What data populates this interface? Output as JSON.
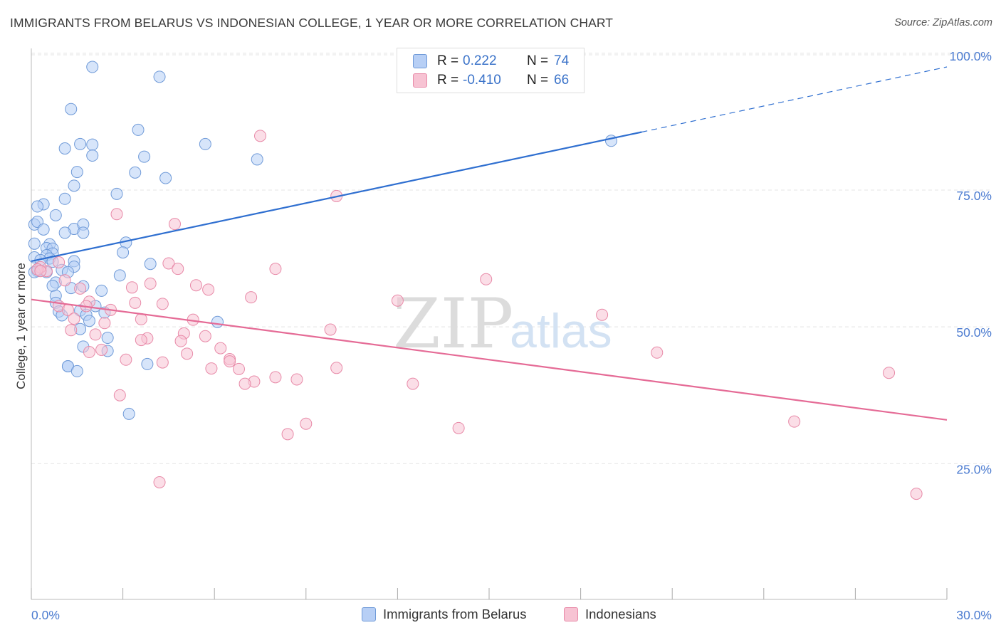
{
  "title": "IMMIGRANTS FROM BELARUS VS INDONESIAN COLLEGE, 1 YEAR OR MORE CORRELATION CHART",
  "source": "Source: ZipAtlas.com",
  "watermark": {
    "zip": "ZIP",
    "atlas": "atlas"
  },
  "legend": {
    "rows": [
      {
        "r_label": "R =",
        "r_value": "0.222",
        "n_label": "N =",
        "n_value": "74"
      },
      {
        "r_label": "R =",
        "r_value": "-0.410",
        "n_label": "N =",
        "n_value": "66"
      }
    ]
  },
  "bottom_legend": {
    "series1": "Immigrants from Belarus",
    "series2": "Indonesians"
  },
  "colors": {
    "blue_fill": "#b7cff5",
    "blue_stroke": "#6f9ad8",
    "blue_line": "#2f6fd0",
    "pink_fill": "#f7c3d3",
    "pink_stroke": "#e88aa8",
    "pink_line": "#e56b96",
    "axis_text": "#4b7bd0",
    "grid": "#e4e4e4"
  },
  "chart_data": {
    "type": "scatter",
    "title": "IMMIGRANTS FROM BELARUS VS INDONESIAN COLLEGE, 1 YEAR OR MORE CORRELATION CHART",
    "xlabel": "",
    "ylabel": "College, 1 year or more",
    "xlim": [
      0,
      30
    ],
    "ylim": [
      0,
      103
    ],
    "x_tick_labels": [
      "0.0%",
      "30.0%"
    ],
    "y_tick_labels": [
      "25.0%",
      "50.0%",
      "75.0%",
      "100.0%"
    ],
    "y_ticks": [
      25,
      50,
      75,
      100
    ],
    "series": [
      {
        "name": "Immigrants from Belarus",
        "R": 0.222,
        "N": 74,
        "trend": {
          "x0": 0,
          "y0": 62.0,
          "x1": 20.0,
          "y1": 85.6,
          "dash_x1": 30,
          "dash_y1": 97.5
        },
        "points": [
          [
            2.0,
            97.5
          ],
          [
            4.2,
            95.7
          ],
          [
            1.3,
            89.8
          ],
          [
            3.5,
            86.0
          ],
          [
            1.1,
            82.6
          ],
          [
            2.0,
            83.3
          ],
          [
            1.6,
            83.4
          ],
          [
            5.7,
            83.4
          ],
          [
            2.0,
            81.3
          ],
          [
            3.7,
            81.1
          ],
          [
            7.4,
            80.6
          ],
          [
            1.5,
            78.3
          ],
          [
            3.4,
            78.2
          ],
          [
            4.4,
            77.2
          ],
          [
            1.4,
            75.8
          ],
          [
            2.8,
            74.3
          ],
          [
            1.1,
            73.4
          ],
          [
            0.4,
            72.4
          ],
          [
            0.2,
            72.0
          ],
          [
            0.8,
            70.4
          ],
          [
            0.1,
            68.7
          ],
          [
            0.2,
            69.2
          ],
          [
            0.4,
            67.8
          ],
          [
            1.4,
            67.9
          ],
          [
            1.7,
            68.7
          ],
          [
            1.1,
            67.2
          ],
          [
            1.7,
            67.2
          ],
          [
            0.1,
            65.2
          ],
          [
            0.6,
            65.1
          ],
          [
            3.1,
            65.4
          ],
          [
            0.5,
            64.4
          ],
          [
            0.7,
            64.3
          ],
          [
            0.7,
            63.4
          ],
          [
            3.0,
            63.6
          ],
          [
            0.5,
            63.1
          ],
          [
            0.6,
            62.5
          ],
          [
            0.1,
            62.7
          ],
          [
            0.3,
            62.2
          ],
          [
            0.7,
            61.9
          ],
          [
            1.4,
            62.0
          ],
          [
            3.9,
            61.5
          ],
          [
            1.0,
            60.4
          ],
          [
            0.2,
            60.5
          ],
          [
            1.4,
            61.0
          ],
          [
            0.2,
            60.2
          ],
          [
            0.1,
            60.0
          ],
          [
            2.9,
            59.4
          ],
          [
            0.8,
            58.1
          ],
          [
            1.7,
            57.4
          ],
          [
            0.7,
            57.5
          ],
          [
            1.3,
            57.1
          ],
          [
            2.3,
            56.6
          ],
          [
            0.8,
            55.7
          ],
          [
            0.8,
            54.4
          ],
          [
            2.1,
            53.8
          ],
          [
            1.6,
            53.0
          ],
          [
            0.9,
            52.8
          ],
          [
            2.4,
            52.6
          ],
          [
            1.8,
            52.2
          ],
          [
            1.0,
            52.1
          ],
          [
            1.9,
            51.1
          ],
          [
            6.1,
            50.9
          ],
          [
            1.6,
            49.6
          ],
          [
            2.5,
            48.0
          ],
          [
            1.7,
            46.4
          ],
          [
            2.5,
            45.6
          ],
          [
            3.8,
            43.2
          ],
          [
            1.2,
            42.8
          ],
          [
            1.2,
            42.8
          ],
          [
            1.5,
            41.9
          ],
          [
            3.2,
            34.1
          ],
          [
            19.0,
            84.0
          ],
          [
            0.5,
            60.0
          ],
          [
            1.2,
            60.0
          ]
        ]
      },
      {
        "name": "Indonesians",
        "R": -0.41,
        "N": 66,
        "trend": {
          "x0": 0,
          "y0": 55.0,
          "x1": 30,
          "y1": 33.0
        },
        "points": [
          [
            7.5,
            84.9
          ],
          [
            10.0,
            73.9
          ],
          [
            2.8,
            70.6
          ],
          [
            4.7,
            68.8
          ],
          [
            0.9,
            61.8
          ],
          [
            0.5,
            60.2
          ],
          [
            0.3,
            60.9
          ],
          [
            0.2,
            60.5
          ],
          [
            4.5,
            61.6
          ],
          [
            4.8,
            60.6
          ],
          [
            8.0,
            60.6
          ],
          [
            14.9,
            58.7
          ],
          [
            3.9,
            57.9
          ],
          [
            5.4,
            57.6
          ],
          [
            1.1,
            58.5
          ],
          [
            3.3,
            57.2
          ],
          [
            5.8,
            56.8
          ],
          [
            1.6,
            57.0
          ],
          [
            7.2,
            55.4
          ],
          [
            12.0,
            54.8
          ],
          [
            3.4,
            54.4
          ],
          [
            4.3,
            54.2
          ],
          [
            1.9,
            54.6
          ],
          [
            1.8,
            53.8
          ],
          [
            2.6,
            53.1
          ],
          [
            0.9,
            53.8
          ],
          [
            1.2,
            53.1
          ],
          [
            18.7,
            52.2
          ],
          [
            3.6,
            51.4
          ],
          [
            1.4,
            51.5
          ],
          [
            5.3,
            51.3
          ],
          [
            2.4,
            50.7
          ],
          [
            1.3,
            49.4
          ],
          [
            9.8,
            49.5
          ],
          [
            5.0,
            48.8
          ],
          [
            5.7,
            48.3
          ],
          [
            2.1,
            48.6
          ],
          [
            3.8,
            47.9
          ],
          [
            3.6,
            47.6
          ],
          [
            4.9,
            47.4
          ],
          [
            6.2,
            46.1
          ],
          [
            2.3,
            45.8
          ],
          [
            1.9,
            45.4
          ],
          [
            20.5,
            45.3
          ],
          [
            5.1,
            45.1
          ],
          [
            3.1,
            44.0
          ],
          [
            4.3,
            43.5
          ],
          [
            6.5,
            44.1
          ],
          [
            6.5,
            43.7
          ],
          [
            10.0,
            42.5
          ],
          [
            6.8,
            42.3
          ],
          [
            5.9,
            42.4
          ],
          [
            28.1,
            41.6
          ],
          [
            8.0,
            40.8
          ],
          [
            8.7,
            40.4
          ],
          [
            7.3,
            40.0
          ],
          [
            12.5,
            39.6
          ],
          [
            7.0,
            39.6
          ],
          [
            2.9,
            37.5
          ],
          [
            9.0,
            32.3
          ],
          [
            25.0,
            32.7
          ],
          [
            14.0,
            31.5
          ],
          [
            8.4,
            30.4
          ],
          [
            4.2,
            21.6
          ],
          [
            29.0,
            19.5
          ],
          [
            0.3,
            60.2
          ]
        ]
      }
    ]
  }
}
